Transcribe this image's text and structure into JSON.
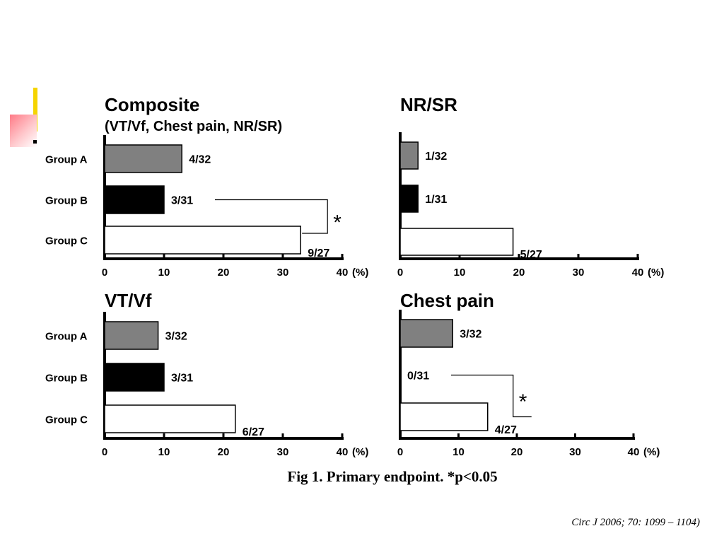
{
  "caption": "Fig 1. Primary endpoint. *p<0.05",
  "citation": "Circ J 2006; 70: 1099 – 1104)",
  "colors": {
    "group_a": "#808080",
    "group_b": "#000000",
    "group_c": "#ffffff",
    "accent_bar": "#f5d400",
    "accent_square": "#ff7a86"
  },
  "chart_data": [
    {
      "type": "bar",
      "title": "Composite",
      "subtitle": "(VT/Vf, Chest pain, NR/SR)",
      "categories": [
        "Group A",
        "Group B",
        "Group C"
      ],
      "values": [
        13,
        10,
        33
      ],
      "labels": [
        "4/32",
        "3/31",
        "9/27"
      ],
      "xlim": [
        0,
        40
      ],
      "xticks": [
        "0",
        "10",
        "20",
        "30",
        "40"
      ],
      "unit": "(%)",
      "significance": {
        "between": [
          "Group B",
          "Group C"
        ],
        "marker": "*"
      }
    },
    {
      "type": "bar",
      "title": "NR/SR",
      "subtitle": "",
      "categories": [
        "Group A",
        "Group B",
        "Group C"
      ],
      "values": [
        3,
        3,
        19
      ],
      "labels": [
        "1/32",
        "1/31",
        "5/27"
      ],
      "xlim": [
        0,
        40
      ],
      "xticks": [
        "0",
        "10",
        "20",
        "30",
        "40"
      ],
      "unit": "(%)"
    },
    {
      "type": "bar",
      "title": "VT/Vf",
      "subtitle": "",
      "categories": [
        "Group A",
        "Group B",
        "Group C"
      ],
      "values": [
        9,
        10,
        22
      ],
      "labels": [
        "3/32",
        "3/31",
        "6/27"
      ],
      "xlim": [
        0,
        40
      ],
      "xticks": [
        "0",
        "10",
        "20",
        "30",
        "40"
      ],
      "unit": "(%)"
    },
    {
      "type": "bar",
      "title": "Chest pain",
      "subtitle": "",
      "categories": [
        "Group A",
        "Group B",
        "Group C"
      ],
      "values": [
        9,
        0,
        15
      ],
      "labels": [
        "3/32",
        "0/31",
        "4/27"
      ],
      "xlim": [
        0,
        40
      ],
      "xticks": [
        "0",
        "10",
        "20",
        "30",
        "40"
      ],
      "unit": "(%)",
      "significance": {
        "between": [
          "Group B",
          "Group C"
        ],
        "marker": "*"
      }
    }
  ]
}
